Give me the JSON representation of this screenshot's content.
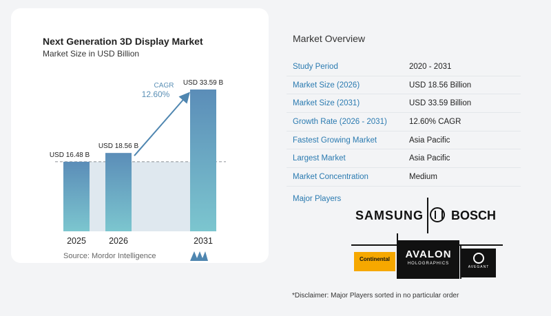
{
  "chart_data": {
    "type": "bar",
    "title": "Next Generation 3D Display Market",
    "subtitle": "Market Size in USD Billion",
    "categories": [
      "2025",
      "2026",
      "2031"
    ],
    "values": [
      16.48,
      18.56,
      33.59
    ],
    "data_labels": [
      "USD 16.48 B",
      "USD 18.56 B",
      "USD 33.59 B"
    ],
    "cagr_label": "CAGR",
    "cagr_value": "12.60%",
    "colors": {
      "bar_top": "#5b8db8",
      "bar_bottom": "#7cc6cf",
      "band": "#dfe8ef",
      "arrow": "#4f86b0"
    }
  },
  "source": "Source:  Mordor Intelligence",
  "overview": {
    "title": "Market Overview",
    "rows": [
      {
        "label": "Study Period",
        "value": "2020 - 2031"
      },
      {
        "label": "Market Size (2026)",
        "value": "USD 18.56 Billion"
      },
      {
        "label": "Market Size (2031)",
        "value": "USD 33.59 Billion"
      },
      {
        "label": "Growth Rate (2026 - 2031)",
        "value": "12.60% CAGR"
      },
      {
        "label": "Fastest Growing Market",
        "value": "Asia Pacific"
      },
      {
        "label": "Largest Market",
        "value": "Asia Pacific"
      },
      {
        "label": "Market Concentration",
        "value": "Medium"
      }
    ]
  },
  "players": {
    "label": "Major Players",
    "samsung": "SAMSUNG",
    "bosch": "BOSCH",
    "continental": "Continental",
    "avalon": "AVALON",
    "avalon_sub": "HOLOGRAPHICS",
    "avegant": "AVEGANT"
  },
  "disclaimer": "*Disclaimer: Major Players sorted in no particular order"
}
